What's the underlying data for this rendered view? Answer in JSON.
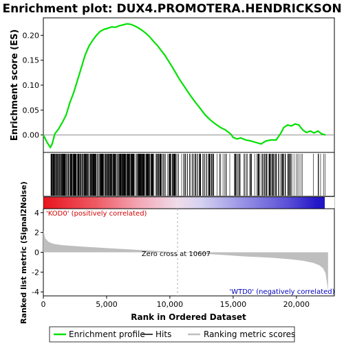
{
  "chart_data": {
    "type": "line",
    "title": "Enrichment plot: DUX4.PROMOTERA.HENDRICKSON",
    "xlabel": "Rank in Ordered Dataset",
    "es_panel": {
      "ylabel": "Enrichment score (ES)",
      "ylim": [
        -0.035,
        0.235
      ],
      "yticks": [
        0.0,
        0.05,
        0.1,
        0.15,
        0.2
      ],
      "ytick_labels": [
        "0.00",
        "0.05",
        "0.10",
        "0.15",
        "0.20"
      ],
      "series": [
        {
          "name": "Enrichment profile",
          "color": "#00e000",
          "x": [
            0,
            300,
            550,
            700,
            900,
            1200,
            1500,
            1800,
            2100,
            2400,
            2700,
            3000,
            3300,
            3600,
            3900,
            4200,
            4500,
            4800,
            5100,
            5400,
            5700,
            6000,
            6300,
            6600,
            6900,
            7200,
            7500,
            7800,
            8100,
            8400,
            8700,
            9000,
            9300,
            9600,
            9900,
            10200,
            10500,
            10800,
            11200,
            11600,
            12000,
            12400,
            12800,
            13200,
            13600,
            14000,
            14400,
            14800,
            15000,
            15300,
            15600,
            16000,
            16400,
            16800,
            17200,
            17600,
            18000,
            18400,
            18800,
            19000,
            19300,
            19600,
            19900,
            20200,
            20500,
            20800,
            21100,
            21400,
            21700,
            22000,
            22300
          ],
          "y": [
            0.0,
            -0.015,
            -0.025,
            -0.018,
            0.002,
            0.012,
            0.025,
            0.04,
            0.065,
            0.085,
            0.11,
            0.135,
            0.16,
            0.178,
            0.19,
            0.2,
            0.208,
            0.212,
            0.214,
            0.217,
            0.216,
            0.219,
            0.221,
            0.223,
            0.222,
            0.219,
            0.215,
            0.21,
            0.204,
            0.197,
            0.188,
            0.18,
            0.17,
            0.16,
            0.148,
            0.136,
            0.123,
            0.11,
            0.095,
            0.08,
            0.066,
            0.053,
            0.04,
            0.03,
            0.022,
            0.015,
            0.01,
            0.002,
            -0.005,
            -0.008,
            -0.006,
            -0.01,
            -0.012,
            -0.015,
            -0.018,
            -0.012,
            -0.01,
            -0.01,
            0.005,
            0.015,
            0.02,
            0.018,
            0.022,
            0.02,
            0.01,
            0.005,
            0.008,
            0.004,
            0.008,
            0.002,
            0.0
          ]
        }
      ],
      "zero_line": 0.0
    },
    "hits_panel": {
      "legend_label": "Hits",
      "dense_regions": [
        {
          "from": 600,
          "to": 8600,
          "count": 420
        },
        {
          "from": 8600,
          "to": 10700,
          "count": 60
        },
        {
          "from": 10700,
          "to": 15000,
          "count": 55
        },
        {
          "from": 15000,
          "to": 19600,
          "count": 90
        },
        {
          "from": 19600,
          "to": 22400,
          "count": 14
        }
      ]
    },
    "rank_panel": {
      "ylabel": "Ranked list metric (Signal2Noise)",
      "ylim": [
        -4.4,
        4.4
      ],
      "yticks": [
        -4,
        -2,
        0,
        2,
        4
      ],
      "ytick_labels": [
        "-4",
        "-2",
        "0",
        "2",
        "4"
      ],
      "series_name": "Ranking metric scores",
      "x": [
        0,
        150,
        400,
        800,
        1500,
        3000,
        5000,
        7000,
        9000,
        10607,
        12000,
        14000,
        16000,
        18000,
        19500,
        20500,
        21300,
        21800,
        22100,
        22300,
        22450,
        22500
      ],
      "y": [
        2.2,
        1.4,
        1.05,
        0.85,
        0.72,
        0.58,
        0.42,
        0.28,
        0.12,
        0.0,
        -0.1,
        -0.25,
        -0.42,
        -0.55,
        -0.7,
        -0.85,
        -1.05,
        -1.3,
        -1.6,
        -2.1,
        -3.4,
        -4.0
      ],
      "zero_cross_label": "Zero cross at 10607",
      "zero_cross_x": 10607,
      "pos_label": "'KOD0' (positively correlated)",
      "neg_label": "'WTD0' (negatively correlated)"
    },
    "x_axis": {
      "xlim": [
        0,
        23000
      ],
      "ticks": [
        0,
        5000,
        10000,
        15000,
        20000
      ],
      "tick_labels": [
        "0",
        "5,000",
        "10,000",
        "15,000",
        "20,000"
      ]
    },
    "legend": {
      "position": "bottom",
      "items": [
        "Enrichment profile",
        "Hits",
        "Ranking metric scores"
      ]
    },
    "colors": {
      "es_line": "#00e000",
      "hits": "#000000",
      "rank_fill": "#bebebe",
      "pos_label": "#d00000",
      "neg_label": "#0000c0",
      "zero_cross": "#b0b0b0"
    }
  }
}
